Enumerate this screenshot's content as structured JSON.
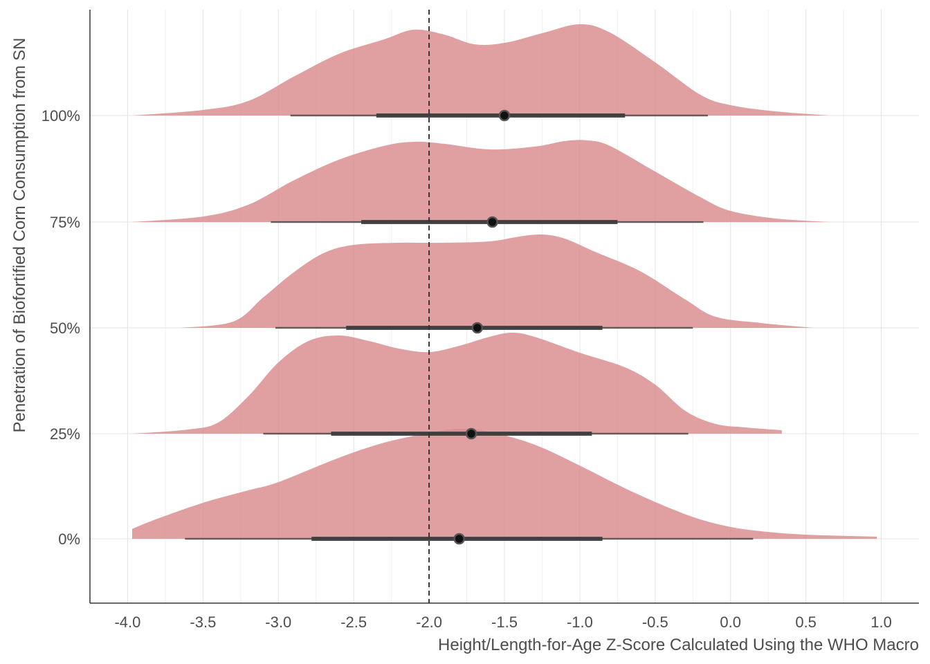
{
  "chart_data": {
    "type": "ridgeline",
    "xlabel": "Height/Length-for-Age Z-Score Calculated Using the WHO Macro",
    "ylabel": "Penetration of Biofortified Corn Consumption from SN",
    "xlim": [
      -4.25,
      1.25
    ],
    "x_ticks": [
      -4.0,
      -3.5,
      -3.0,
      -2.5,
      -2.0,
      -1.5,
      -1.0,
      -0.5,
      0.0,
      0.5,
      1.0
    ],
    "x_tick_labels": [
      "-4.0",
      "-3.5",
      "-3.0",
      "-2.5",
      "-2.0",
      "-1.5",
      "-1.0",
      "-0.5",
      "0.0",
      "0.5",
      "1.0"
    ],
    "reference_line_x": -2.0,
    "grid": true,
    "fill_color": "#d98b8c",
    "categories": [
      {
        "label": "0%",
        "point": -1.8,
        "interval_66": [
          -2.78,
          -0.85
        ],
        "interval_95": [
          -3.62,
          0.15
        ],
        "density": [
          [
            -3.97,
            0.094
          ],
          [
            -3.8,
            0.191
          ],
          [
            -3.5,
            0.34
          ],
          [
            -3.2,
            0.458
          ],
          [
            -3.0,
            0.536
          ],
          [
            -2.6,
            0.765
          ],
          [
            -2.3,
            0.908
          ],
          [
            -2.0,
            1.0
          ],
          [
            -1.8,
            1.039
          ],
          [
            -1.6,
            1.012
          ],
          [
            -1.3,
            0.89
          ],
          [
            -1.0,
            0.692
          ],
          [
            -0.7,
            0.477
          ],
          [
            -0.4,
            0.288
          ],
          [
            -0.2,
            0.183
          ],
          [
            0.0,
            0.112
          ],
          [
            0.2,
            0.072
          ],
          [
            0.5,
            0.039
          ],
          [
            0.97,
            0.02
          ]
        ]
      },
      {
        "label": "25%",
        "point": -1.72,
        "interval_66": [
          -2.65,
          -0.92
        ],
        "interval_95": [
          -3.1,
          -0.28
        ],
        "density": [
          [
            -3.97,
            0.0
          ],
          [
            -3.6,
            0.039
          ],
          [
            -3.4,
            0.105
          ],
          [
            -3.2,
            0.353
          ],
          [
            -3.0,
            0.673
          ],
          [
            -2.8,
            0.876
          ],
          [
            -2.6,
            0.928
          ],
          [
            -2.4,
            0.876
          ],
          [
            -2.2,
            0.804
          ],
          [
            -2.0,
            0.771
          ],
          [
            -1.8,
            0.83
          ],
          [
            -1.6,
            0.915
          ],
          [
            -1.45,
            0.954
          ],
          [
            -1.3,
            0.915
          ],
          [
            -1.0,
            0.765
          ],
          [
            -0.7,
            0.627
          ],
          [
            -0.5,
            0.464
          ],
          [
            -0.3,
            0.216
          ],
          [
            -0.1,
            0.092
          ],
          [
            0.1,
            0.059
          ],
          [
            0.34,
            0.033
          ]
        ]
      },
      {
        "label": "50%",
        "point": -1.68,
        "interval_66": [
          -2.55,
          -0.85
        ],
        "interval_95": [
          -3.02,
          -0.25
        ],
        "density": [
          [
            -3.65,
            0.0
          ],
          [
            -3.3,
            0.059
          ],
          [
            -3.1,
            0.288
          ],
          [
            -2.9,
            0.523
          ],
          [
            -2.7,
            0.706
          ],
          [
            -2.5,
            0.784
          ],
          [
            -2.2,
            0.804
          ],
          [
            -1.9,
            0.804
          ],
          [
            -1.6,
            0.817
          ],
          [
            -1.4,
            0.863
          ],
          [
            -1.25,
            0.882
          ],
          [
            -1.1,
            0.843
          ],
          [
            -0.9,
            0.719
          ],
          [
            -0.6,
            0.536
          ],
          [
            -0.3,
            0.268
          ],
          [
            -0.1,
            0.105
          ],
          [
            0.2,
            0.046
          ],
          [
            0.55,
            0.0
          ]
        ]
      },
      {
        "label": "75%",
        "point": -1.58,
        "interval_66": [
          -2.45,
          -0.75
        ],
        "interval_95": [
          -3.05,
          -0.18
        ],
        "density": [
          [
            -3.97,
            0.0
          ],
          [
            -3.5,
            0.052
          ],
          [
            -3.2,
            0.163
          ],
          [
            -2.9,
            0.392
          ],
          [
            -2.6,
            0.588
          ],
          [
            -2.3,
            0.719
          ],
          [
            -2.1,
            0.758
          ],
          [
            -1.9,
            0.739
          ],
          [
            -1.6,
            0.686
          ],
          [
            -1.3,
            0.713
          ],
          [
            -1.1,
            0.765
          ],
          [
            -0.95,
            0.771
          ],
          [
            -0.8,
            0.719
          ],
          [
            -0.5,
            0.477
          ],
          [
            -0.2,
            0.235
          ],
          [
            0.0,
            0.105
          ],
          [
            0.3,
            0.033
          ],
          [
            0.66,
            0.0
          ]
        ]
      },
      {
        "label": "100%",
        "point": -1.5,
        "interval_66": [
          -2.35,
          -0.7
        ],
        "interval_95": [
          -2.92,
          -0.15
        ],
        "density": [
          [
            -3.97,
            0.0
          ],
          [
            -3.5,
            0.052
          ],
          [
            -3.2,
            0.137
          ],
          [
            -2.9,
            0.366
          ],
          [
            -2.6,
            0.582
          ],
          [
            -2.3,
            0.719
          ],
          [
            -2.1,
            0.811
          ],
          [
            -1.9,
            0.765
          ],
          [
            -1.7,
            0.673
          ],
          [
            -1.5,
            0.686
          ],
          [
            -1.25,
            0.778
          ],
          [
            -1.0,
            0.863
          ],
          [
            -0.8,
            0.784
          ],
          [
            -0.5,
            0.503
          ],
          [
            -0.2,
            0.196
          ],
          [
            0.0,
            0.098
          ],
          [
            0.3,
            0.039
          ],
          [
            0.66,
            0.0
          ]
        ]
      }
    ]
  }
}
